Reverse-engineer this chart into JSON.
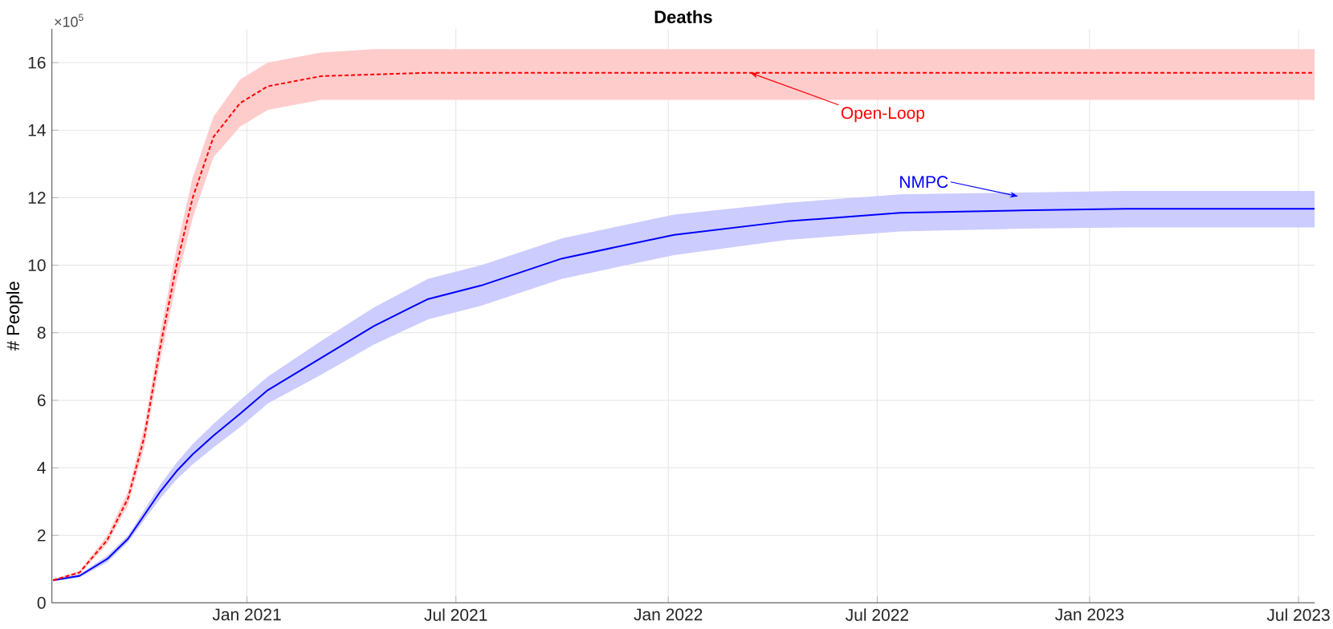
{
  "chart_data": {
    "type": "line",
    "title": "Deaths",
    "ylabel": "# People",
    "x": [
      "2020-07-17",
      "2020-08-09",
      "2020-09-02",
      "2020-09-20",
      "2020-10-04",
      "2020-10-18",
      "2020-11-01",
      "2020-11-15",
      "2020-12-03",
      "2020-12-26",
      "2021-01-19",
      "2021-03-06",
      "2021-04-21",
      "2021-06-07",
      "2021-07-23",
      "2021-10-01",
      "2022-01-06",
      "2022-04-14",
      "2022-07-21",
      "2022-10-27",
      "2023-02-01",
      "2023-07-15"
    ],
    "series": [
      {
        "color": "#ff0000",
        "line_style": "dashed",
        "values": [
          0.67,
          0.9,
          1.86,
          3.1,
          4.9,
          7.6,
          10.0,
          12.0,
          13.8,
          14.8,
          15.3,
          15.6,
          15.65,
          15.7,
          15.7,
          15.7,
          15.7,
          15.7,
          15.7,
          15.7,
          15.7,
          15.7
        ],
        "upper": [
          0.7,
          0.95,
          2.0,
          3.3,
          5.2,
          8.0,
          10.5,
          12.6,
          14.4,
          15.5,
          16.0,
          16.3,
          16.4,
          16.4,
          16.4,
          16.4,
          16.4,
          16.4,
          16.4,
          16.4,
          16.4,
          16.4
        ],
        "lower": [
          0.64,
          0.85,
          1.75,
          2.9,
          4.6,
          7.2,
          9.5,
          11.4,
          13.2,
          14.1,
          14.6,
          14.9,
          14.9,
          14.9,
          14.9,
          14.9,
          14.9,
          14.9,
          14.9,
          14.9,
          14.9,
          14.9
        ]
      },
      {
        "color": "#0000ff",
        "line_style": "solid",
        "values": [
          0.67,
          0.8,
          1.3,
          1.9,
          2.6,
          3.3,
          3.9,
          4.4,
          4.95,
          5.6,
          6.3,
          7.25,
          8.2,
          9.0,
          9.4,
          10.2,
          10.9,
          11.3,
          11.55,
          11.62,
          11.67,
          11.67
        ],
        "upper": [
          0.7,
          0.85,
          1.4,
          2.0,
          2.75,
          3.5,
          4.15,
          4.7,
          5.3,
          6.0,
          6.7,
          7.75,
          8.75,
          9.6,
          10.0,
          10.8,
          11.5,
          11.85,
          12.1,
          12.15,
          12.2,
          12.2
        ],
        "lower": [
          0.64,
          0.75,
          1.2,
          1.8,
          2.45,
          3.1,
          3.65,
          4.1,
          4.6,
          5.2,
          5.9,
          6.75,
          7.65,
          8.4,
          8.8,
          9.6,
          10.3,
          10.75,
          11.0,
          11.08,
          11.12,
          11.12
        ]
      }
    ],
    "xlim": [
      "2020-07-16",
      "2023-07-15"
    ],
    "xticks": [
      {
        "value": "2021-01-01",
        "label": "Jan 2021"
      },
      {
        "value": "2021-07-01",
        "label": "Jul 2021"
      },
      {
        "value": "2022-01-01",
        "label": "Jan 2022"
      },
      {
        "value": "2022-07-01",
        "label": "Jul 2022"
      },
      {
        "value": "2023-01-01",
        "label": "Jan 2023"
      },
      {
        "value": "2023-07-01",
        "label": "Jul 2023"
      }
    ],
    "ylim": [
      0,
      17
    ],
    "yticks": [
      0,
      2,
      4,
      6,
      8,
      10,
      12,
      14,
      16
    ],
    "grid": true,
    "marker": "none",
    "annotations": [
      "×10$^{5}$",
      {
        "text": "Open-Loop",
        "x": "2022-03-13",
        "y": 15.7
      },
      {
        "text": "NMPC",
        "x": "2022-10-31",
        "y": 12.04
      }
    ]
  }
}
